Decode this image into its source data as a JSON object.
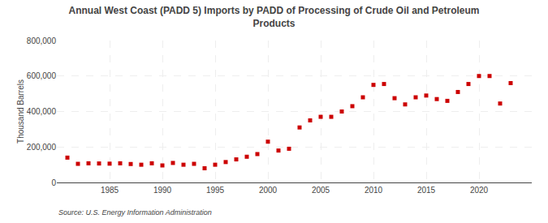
{
  "chart_data": {
    "type": "scatter",
    "title": "Annual West Coast (PADD 5) Imports by PADD of Processing of Crude Oil and Petroleum\nProducts",
    "ylabel": "Thousand Barrels",
    "source": "Source: U.S. Energy Information Administration",
    "x": [
      1981,
      1982,
      1983,
      1984,
      1985,
      1986,
      1987,
      1988,
      1989,
      1990,
      1991,
      1992,
      1993,
      1994,
      1995,
      1996,
      1997,
      1998,
      1999,
      2000,
      2001,
      2002,
      2003,
      2004,
      2005,
      2006,
      2007,
      2008,
      2009,
      2010,
      2011,
      2012,
      2013,
      2014,
      2015,
      2016,
      2017,
      2018,
      2019,
      2020,
      2021,
      2022,
      2023
    ],
    "values": [
      140000,
      105000,
      108000,
      107000,
      106000,
      108000,
      104000,
      100000,
      108000,
      96000,
      110000,
      100000,
      105000,
      80000,
      100000,
      115000,
      130000,
      145000,
      160000,
      230000,
      180000,
      190000,
      310000,
      350000,
      370000,
      370000,
      400000,
      430000,
      480000,
      550000,
      555000,
      475000,
      440000,
      480000,
      490000,
      470000,
      460000,
      510000,
      555000,
      600000,
      600000,
      445000,
      560000
    ],
    "color": "#cc0000",
    "marker": "square",
    "grid": true,
    "xlim": [
      1980,
      2025
    ],
    "xticks": [
      1985,
      1990,
      1995,
      2000,
      2005,
      2010,
      2015,
      2020
    ],
    "ylim": [
      0,
      800000
    ],
    "yticks": [
      0,
      {
        "value": 200000,
        "label": "200,000"
      },
      {
        "value": 400000,
        "label": "400,000"
      },
      {
        "value": 600000,
        "label": "600,000"
      },
      {
        "value": 800000,
        "label": "800,000"
      }
    ]
  }
}
